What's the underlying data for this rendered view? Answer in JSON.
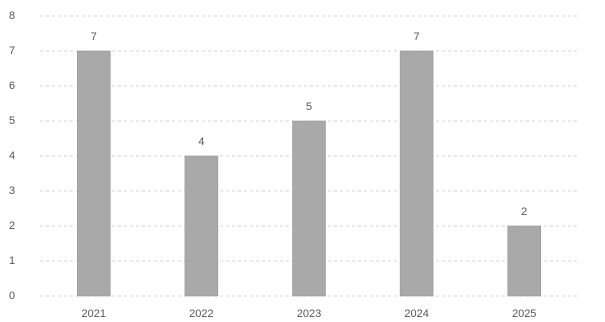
{
  "chart_data": {
    "type": "bar",
    "categories": [
      "2021",
      "2022",
      "2023",
      "2024",
      "2025"
    ],
    "values": [
      7,
      4,
      5,
      7,
      2
    ],
    "color": "#a9a9a9",
    "ylim": [
      0,
      8
    ],
    "yticks": [
      0,
      1,
      2,
      3,
      4,
      5,
      6,
      7,
      8
    ],
    "grid": true,
    "data_labels": true
  }
}
